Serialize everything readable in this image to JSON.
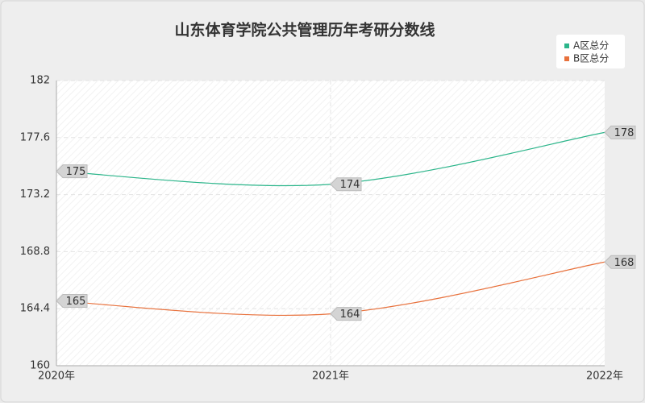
{
  "chart_data": {
    "type": "line",
    "title": "山东体育学院公共管理历年考研分数线",
    "categories": [
      "2020年",
      "2021年",
      "2022年"
    ],
    "series": [
      {
        "name": "A区总分",
        "color": "#2bb58a",
        "values": [
          175,
          174,
          178
        ]
      },
      {
        "name": "B区总分",
        "color": "#e8713c",
        "values": [
          165,
          164,
          168
        ]
      }
    ],
    "ylim": [
      160,
      182
    ],
    "yticks": [
      160,
      164.4,
      168.8,
      173.2,
      177.6,
      182
    ],
    "grid": true,
    "legend": "top-right"
  }
}
